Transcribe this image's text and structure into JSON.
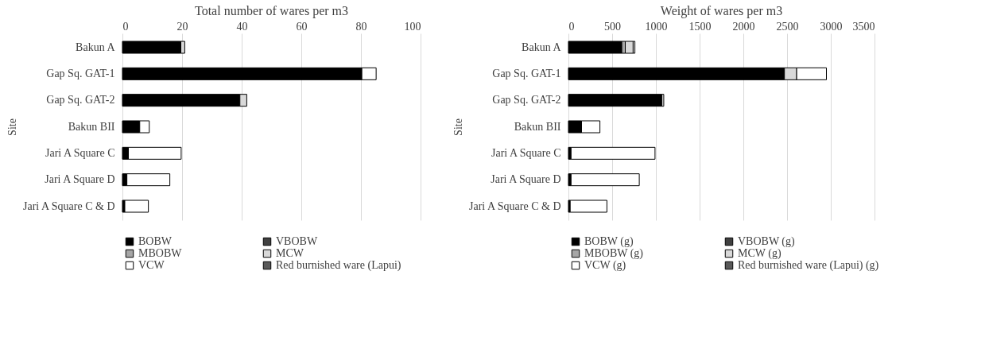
{
  "chart_data": [
    {
      "type": "bar",
      "orientation": "horizontal",
      "stacked": true,
      "title": "Total number of wares per m3",
      "ylabel": "Site",
      "categories": [
        "Bakun A",
        "Gap Sq.  GAT-1",
        "Gap Sq.  GAT-2",
        "Bakun BII",
        "Jari A Square C",
        "Jari A Square D",
        "Jari A Square C & D"
      ],
      "xlim": [
        0,
        100
      ],
      "xticks": [
        0,
        20,
        40,
        60,
        80,
        100
      ],
      "grid": "x",
      "legend": "bottom",
      "series": [
        {
          "name": "BOBW",
          "color": "#000000",
          "values": [
            19.3,
            80.3,
            39.4,
            5.8,
            2.0,
            1.5,
            0.8
          ]
        },
        {
          "name": "VBOBW",
          "color": "#404040",
          "values": [
            0.3,
            null,
            null,
            null,
            null,
            null,
            null
          ]
        },
        {
          "name": "MBOBW",
          "color": "#a6a6a6",
          "values": [
            null,
            null,
            null,
            null,
            null,
            null,
            null
          ]
        },
        {
          "name": "MCW",
          "color": "#d9d9d9",
          "values": [
            1.3,
            null,
            2.3,
            null,
            null,
            null,
            null
          ]
        },
        {
          "name": "VCW",
          "color": "#ffffff",
          "values": [
            null,
            4.8,
            null,
            3.2,
            17.7,
            14.4,
            7.9
          ]
        },
        {
          "name": "Red burnished ware (Lapui)",
          "color": "#595959",
          "values": [
            null,
            null,
            null,
            null,
            null,
            null,
            null
          ]
        }
      ]
    },
    {
      "type": "bar",
      "orientation": "horizontal",
      "stacked": true,
      "title": "Weight of wares per m3",
      "ylabel": "Site",
      "categories": [
        "Bakun A",
        "Gap Sq.  GAT-1",
        "Gap Sq.  GAT-2",
        "Bakun BII",
        "Jari A Square C",
        "Jari A Square D",
        "Jari A Square C & D"
      ],
      "xlim": [
        0,
        3500
      ],
      "xticks": [
        0,
        500,
        1000,
        1500,
        2000,
        2500,
        3000,
        3500
      ],
      "grid": "x",
      "legend": "bottom",
      "series": [
        {
          "name": "BOBW (g)",
          "color": "#000000",
          "values": [
            610,
            2470,
            1070,
            150,
            30,
            30,
            20
          ]
        },
        {
          "name": "VBOBW (g)",
          "color": "#404040",
          "values": [
            null,
            null,
            null,
            null,
            null,
            null,
            null
          ]
        },
        {
          "name": "MBOBW (g)",
          "color": "#a6a6a6",
          "values": [
            40,
            null,
            null,
            null,
            null,
            null,
            null
          ]
        },
        {
          "name": "MCW (g)",
          "color": "#d9d9d9",
          "values": [
            90,
            140,
            null,
            null,
            null,
            null,
            null
          ]
        },
        {
          "name": "VCW (g)",
          "color": "#ffffff",
          "values": [
            20,
            340,
            20,
            210,
            960,
            780,
            420
          ]
        },
        {
          "name": "Red burnished ware (Lapui) (g)",
          "color": "#595959",
          "values": [
            null,
            null,
            null,
            null,
            null,
            null,
            null
          ]
        }
      ]
    }
  ]
}
